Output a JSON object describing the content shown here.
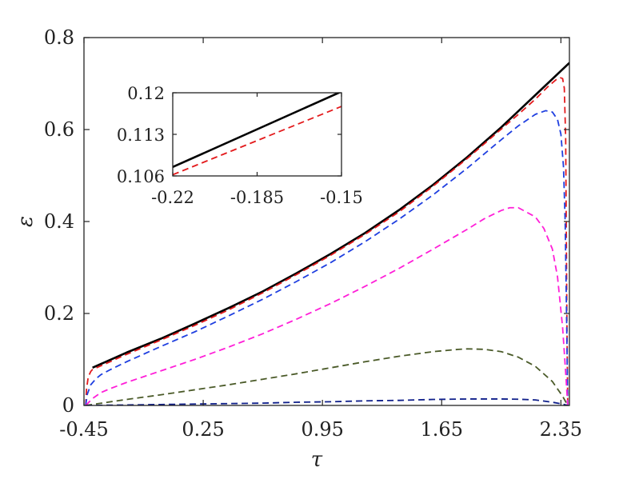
{
  "chart_data": [
    {
      "type": "line",
      "xlabel": "τ",
      "ylabel": "ε",
      "xlim": [
        -0.45,
        2.4
      ],
      "ylim": [
        0,
        0.8
      ],
      "xticks": [
        -0.45,
        0.25,
        0.95,
        1.65,
        2.35
      ],
      "xtick_labels": [
        "-0.45",
        "0.25",
        "0.95",
        "1.65",
        "2.35"
      ],
      "yticks": [
        0,
        0.2,
        0.4,
        0.6,
        0.8
      ],
      "ytick_labels": [
        "0",
        "0.2",
        "0.4",
        "0.6",
        "0.8"
      ],
      "grid": false,
      "series": [
        {
          "color": "#000000",
          "dash": "solid",
          "width": 2.6,
          "x": [
            -0.4,
            -0.2,
            0.0,
            0.2,
            0.4,
            0.6,
            0.8,
            1.0,
            1.2,
            1.4,
            1.6,
            1.8,
            2.0,
            2.2,
            2.4
          ],
          "y": [
            0.082,
            0.115,
            0.145,
            0.178,
            0.212,
            0.248,
            0.288,
            0.33,
            0.375,
            0.425,
            0.48,
            0.54,
            0.605,
            0.675,
            0.745
          ]
        },
        {
          "color": "#e31a1c",
          "dash": "8,5",
          "width": 1.8,
          "x": [
            -0.44,
            -0.435,
            -0.425,
            -0.41,
            -0.4,
            -0.2,
            0.0,
            0.2,
            0.4,
            0.6,
            0.8,
            1.0,
            1.2,
            1.4,
            1.6,
            1.8,
            2.0,
            2.1,
            2.2,
            2.27,
            2.32,
            2.345,
            2.36,
            2.37,
            2.378,
            2.385,
            2.39
          ],
          "y": [
            0.0,
            0.035,
            0.062,
            0.074,
            0.078,
            0.111,
            0.142,
            0.174,
            0.208,
            0.245,
            0.285,
            0.327,
            0.372,
            0.421,
            0.477,
            0.537,
            0.601,
            0.633,
            0.666,
            0.692,
            0.708,
            0.713,
            0.711,
            0.69,
            0.58,
            0.2,
            0.0
          ]
        },
        {
          "color": "#1f3fe0",
          "dash": "8,5",
          "width": 1.8,
          "x": [
            -0.44,
            -0.43,
            -0.41,
            -0.38,
            -0.35,
            -0.3,
            -0.2,
            0.0,
            0.2,
            0.4,
            0.6,
            0.8,
            1.0,
            1.2,
            1.4,
            1.6,
            1.8,
            2.0,
            2.1,
            2.2,
            2.26,
            2.3,
            2.33,
            2.35,
            2.365,
            2.375,
            2.385,
            2.39
          ],
          "y": [
            0.0,
            0.025,
            0.045,
            0.058,
            0.067,
            0.077,
            0.095,
            0.128,
            0.16,
            0.195,
            0.231,
            0.27,
            0.311,
            0.356,
            0.405,
            0.458,
            0.516,
            0.578,
            0.608,
            0.633,
            0.641,
            0.638,
            0.622,
            0.59,
            0.52,
            0.4,
            0.15,
            0.0
          ]
        },
        {
          "color": "#ff1fd8",
          "dash": "8,5",
          "width": 1.8,
          "x": [
            -0.44,
            -0.4,
            -0.35,
            -0.3,
            -0.2,
            0.0,
            0.2,
            0.4,
            0.6,
            0.8,
            1.0,
            1.2,
            1.4,
            1.6,
            1.8,
            1.9,
            2.0,
            2.05,
            2.1,
            2.2,
            2.25,
            2.3,
            2.33,
            2.36,
            2.38,
            2.39
          ],
          "y": [
            0.0,
            0.015,
            0.028,
            0.036,
            0.05,
            0.075,
            0.1,
            0.127,
            0.156,
            0.188,
            0.222,
            0.259,
            0.298,
            0.34,
            0.383,
            0.406,
            0.424,
            0.43,
            0.43,
            0.41,
            0.385,
            0.34,
            0.28,
            0.17,
            0.06,
            0.0
          ]
        },
        {
          "color": "#4a5a28",
          "dash": "8,5",
          "width": 1.8,
          "x": [
            -0.44,
            -0.2,
            0.0,
            0.2,
            0.4,
            0.6,
            0.8,
            1.0,
            1.2,
            1.4,
            1.6,
            1.75,
            1.8,
            1.9,
            2.0,
            2.1,
            2.2,
            2.3,
            2.36,
            2.39
          ],
          "y": [
            0.0,
            0.013,
            0.023,
            0.034,
            0.045,
            0.057,
            0.069,
            0.082,
            0.095,
            0.107,
            0.117,
            0.122,
            0.123,
            0.122,
            0.117,
            0.105,
            0.085,
            0.052,
            0.02,
            0.0
          ]
        },
        {
          "color": "#0f1f8a",
          "dash": "8,5",
          "width": 1.8,
          "x": [
            -0.44,
            -0.2,
            0.0,
            0.2,
            0.4,
            0.6,
            0.8,
            1.0,
            1.2,
            1.4,
            1.6,
            1.8,
            2.0,
            2.1,
            2.2,
            2.3,
            2.36,
            2.39
          ],
          "y": [
            0.0,
            0.001,
            0.002,
            0.003,
            0.004,
            0.005,
            0.007,
            0.008,
            0.01,
            0.011,
            0.013,
            0.014,
            0.014,
            0.0135,
            0.012,
            0.007,
            0.003,
            0.0
          ]
        }
      ]
    },
    {
      "type": "line",
      "xlabel": "",
      "ylabel": "",
      "xlim": [
        -0.22,
        -0.15
      ],
      "ylim": [
        0.106,
        0.12
      ],
      "xticks": [
        -0.22,
        -0.185,
        -0.15
      ],
      "xtick_labels": [
        "-0.22",
        "-0.185",
        "-0.15"
      ],
      "yticks": [
        0.106,
        0.113,
        0.12
      ],
      "ytick_labels": [
        "0.106",
        "0.113",
        "0.12"
      ],
      "grid": false,
      "series": [
        {
          "color": "#000000",
          "dash": "solid",
          "width": 2.6,
          "x": [
            -0.22,
            -0.15
          ],
          "y": [
            0.1075,
            0.1202
          ]
        },
        {
          "color": "#e31a1c",
          "dash": "8,5",
          "width": 1.8,
          "x": [
            -0.22,
            -0.15
          ],
          "y": [
            0.1062,
            0.1177
          ]
        }
      ]
    }
  ]
}
